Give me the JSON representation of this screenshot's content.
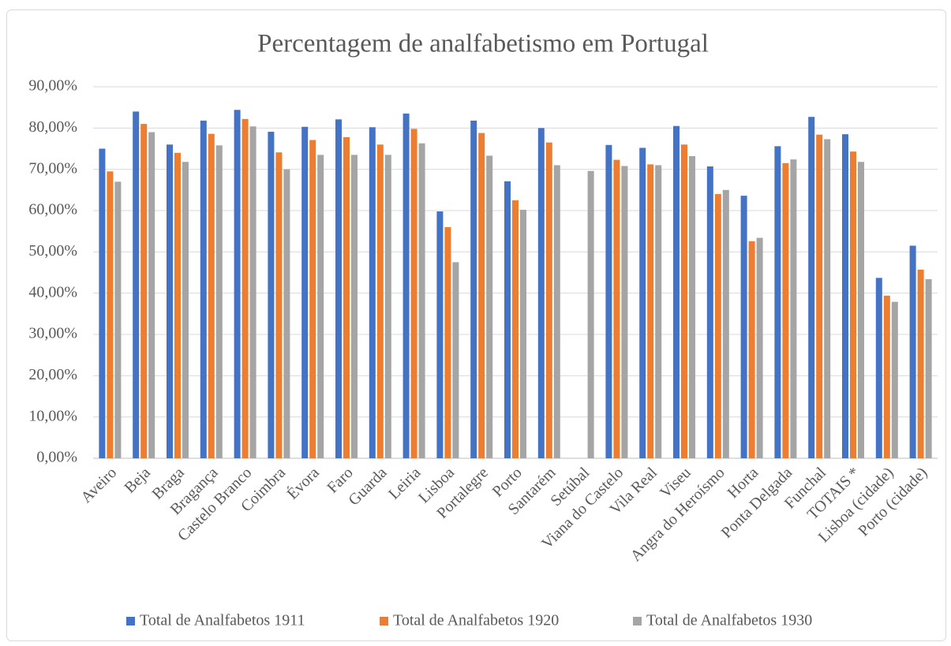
{
  "chart_data": {
    "type": "bar",
    "title": "Percentagem de analfabetismo em Portugal",
    "categories": [
      "Aveiro",
      "Beja",
      "Braga",
      "Bragança",
      "Castelo Branco",
      "Coimbra",
      "Évora",
      "Faro",
      "Guarda",
      "Leiria",
      "Lisboa",
      "Portalegre",
      "Porto",
      "Santarém",
      "Setúbal",
      "Viana do Castelo",
      "Vila Real",
      "Viseu",
      "Angra do Heroísmo",
      "Horta",
      "Ponta Delgada",
      "Funchal",
      "TOTAIS *",
      "Lisboa (cidade)",
      "Porto (cidade)"
    ],
    "series": [
      {
        "name": "Total de Analfabetos 1911",
        "color": "#4472c4",
        "values": [
          75,
          84,
          76,
          81.8,
          84.4,
          79.1,
          80.3,
          82.1,
          80.2,
          83.5,
          59.8,
          81.8,
          67.1,
          80,
          null,
          75.9,
          75.2,
          80.5,
          70.7,
          63.6,
          75.6,
          82.7,
          78.5,
          43.7,
          51.5
        ]
      },
      {
        "name": "Total de Analfabetos 1920",
        "color": "#ed7d31",
        "values": [
          69.5,
          81,
          74,
          78.6,
          82.2,
          74.1,
          77.1,
          77.8,
          76,
          79.8,
          56,
          78.8,
          62.5,
          76.5,
          null,
          72.3,
          71.2,
          76,
          64,
          52.6,
          71.5,
          78.4,
          74.3,
          39.4,
          45.7
        ]
      },
      {
        "name": "Total de Analfabetos 1930",
        "color": "#a5a5a5",
        "values": [
          67,
          79,
          71.8,
          75.8,
          80.4,
          70,
          73.5,
          73.5,
          73.5,
          76.3,
          47.5,
          73.3,
          60.2,
          71,
          69.6,
          70.8,
          71,
          73.2,
          65,
          53.4,
          72.4,
          77.3,
          71.8,
          37.9,
          43.4
        ]
      }
    ],
    "ylim": [
      0,
      90
    ],
    "yticks": [
      {
        "value": 0,
        "label": "0,00%"
      },
      {
        "value": 10,
        "label": "10,00%"
      },
      {
        "value": 20,
        "label": "20,00%"
      },
      {
        "value": 30,
        "label": "30,00%"
      },
      {
        "value": 40,
        "label": "40,00%"
      },
      {
        "value": 50,
        "label": "50,00%"
      },
      {
        "value": 60,
        "label": "60,00%"
      },
      {
        "value": 70,
        "label": "70,00%"
      },
      {
        "value": 80,
        "label": "80,00%"
      },
      {
        "value": 90,
        "label": "90,00%"
      }
    ],
    "grid": true,
    "legend": "bottom"
  }
}
